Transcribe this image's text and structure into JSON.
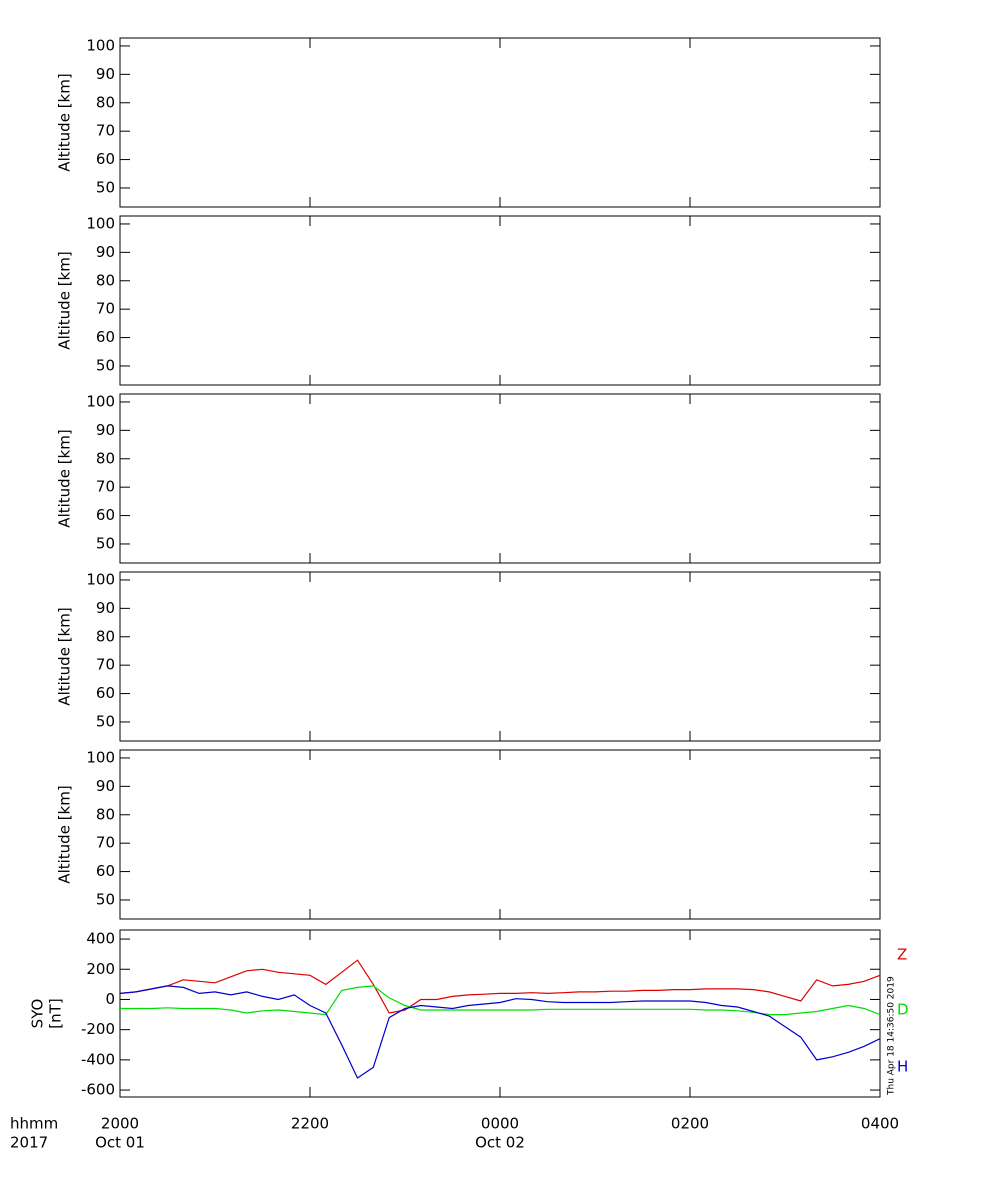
{
  "chart_data": [
    {
      "type": "line",
      "ylabel": "Altitude [km]",
      "ylim": [
        43.3,
        102.8
      ],
      "yticks": [
        50,
        60,
        70,
        80,
        90,
        100
      ]
    },
    {
      "type": "line",
      "ylabel": "Altitude [km]",
      "ylim": [
        43.3,
        102.8
      ],
      "yticks": [
        50,
        60,
        70,
        80,
        90,
        100
      ]
    },
    {
      "type": "line",
      "ylabel": "Altitude [km]",
      "ylim": [
        43.3,
        102.8
      ],
      "yticks": [
        50,
        60,
        70,
        80,
        90,
        100
      ]
    },
    {
      "type": "line",
      "ylabel": "Altitude [km]",
      "ylim": [
        43.3,
        102.8
      ],
      "yticks": [
        50,
        60,
        70,
        80,
        90,
        100
      ]
    },
    {
      "type": "line",
      "ylabel": "Altitude [km]",
      "ylim": [
        43.3,
        102.8
      ],
      "yticks": [
        50,
        60,
        70,
        80,
        90,
        100
      ]
    },
    {
      "type": "line",
      "ylabel": [
        "SYO",
        "[nT]"
      ],
      "ylim": [
        -646,
        460
      ],
      "yticks": [
        -600,
        -400,
        -200,
        0,
        200,
        400
      ],
      "xlim": [
        "2000",
        "0400"
      ],
      "xticks": [
        "2000",
        "2200",
        "0000",
        "0200",
        "0400"
      ],
      "xtick_dates": [
        "Oct 01",
        null,
        "Oct 02",
        null,
        null
      ],
      "xtick_row_labels": [
        "hhmm",
        "2017"
      ],
      "timestamp": "Thu Apr 18 14:36:50 2019",
      "x": [
        "2000",
        "2010",
        "2020",
        "2030",
        "2040",
        "2050",
        "2100",
        "2110",
        "2120",
        "2130",
        "2140",
        "2150",
        "2200",
        "2210",
        "2220",
        "2230",
        "2240",
        "2250",
        "2300",
        "2310",
        "2320",
        "2330",
        "2340",
        "2350",
        "0000",
        "0010",
        "0020",
        "0030",
        "0040",
        "0050",
        "0100",
        "0110",
        "0120",
        "0130",
        "0140",
        "0150",
        "0200",
        "0210",
        "0220",
        "0230",
        "0240",
        "0250",
        "0300",
        "0310",
        "0320",
        "0330",
        "0340",
        "0350",
        "0400"
      ],
      "series": [
        {
          "name": "Z",
          "color": "#dd0000",
          "values": [
            40,
            50,
            70,
            90,
            130,
            120,
            110,
            150,
            190,
            200,
            180,
            170,
            160,
            100,
            180,
            260,
            100,
            -90,
            -70,
            0,
            0,
            20,
            30,
            35,
            40,
            40,
            45,
            40,
            45,
            50,
            50,
            55,
            55,
            60,
            60,
            65,
            65,
            70,
            70,
            70,
            65,
            50,
            20,
            -10,
            130,
            90,
            100,
            120,
            160
          ]
        },
        {
          "name": "D",
          "color": "#00dd00",
          "values": [
            -60,
            -60,
            -60,
            -55,
            -60,
            -60,
            -60,
            -70,
            -90,
            -75,
            -70,
            -80,
            -90,
            -100,
            60,
            80,
            90,
            10,
            -40,
            -70,
            -70,
            -70,
            -70,
            -70,
            -70,
            -70,
            -70,
            -65,
            -65,
            -65,
            -65,
            -65,
            -65,
            -65,
            -65,
            -65,
            -65,
            -70,
            -70,
            -75,
            -85,
            -100,
            -100,
            -90,
            -80,
            -60,
            -40,
            -60,
            -100
          ]
        },
        {
          "name": "H",
          "color": "#0000cc",
          "values": [
            40,
            50,
            70,
            90,
            80,
            40,
            50,
            30,
            50,
            20,
            0,
            30,
            -40,
            -90,
            -300,
            -520,
            -450,
            -120,
            -60,
            -40,
            -50,
            -60,
            -40,
            -30,
            -20,
            5,
            0,
            -15,
            -20,
            -20,
            -20,
            -20,
            -15,
            -10,
            -10,
            -10,
            -10,
            -20,
            -40,
            -50,
            -80,
            -110,
            -180,
            -250,
            -400,
            -380,
            -350,
            -310,
            -260
          ]
        }
      ]
    }
  ]
}
